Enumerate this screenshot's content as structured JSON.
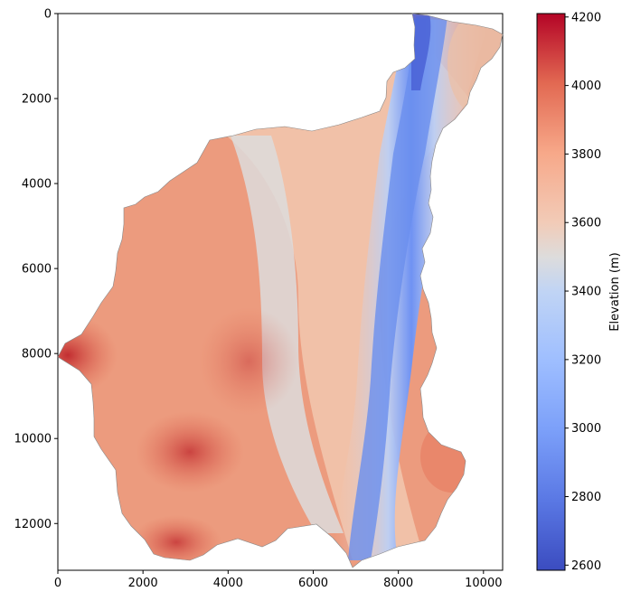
{
  "chart_data": {
    "type": "heatmap",
    "title": "",
    "xlabel": "",
    "ylabel": "",
    "x_ticks": [
      0,
      2000,
      4000,
      6000,
      8000,
      10000
    ],
    "y_ticks": [
      0,
      2000,
      4000,
      6000,
      8000,
      10000,
      12000
    ],
    "xlim": [
      0,
      10450
    ],
    "ylim": [
      13100,
      0
    ],
    "colorbar": {
      "label": "Elevation (m)",
      "colormap": "coolwarm",
      "min": 2585,
      "max": 4210,
      "ticks": [
        2600,
        2800,
        3000,
        3200,
        3400,
        3600,
        3800,
        4000,
        4200
      ]
    },
    "valley_axis_elevation_m": 3000,
    "rim_elevation_m": 3900,
    "max_elevation_point": {
      "x": 0,
      "y": 8050,
      "value": 4210
    }
  }
}
